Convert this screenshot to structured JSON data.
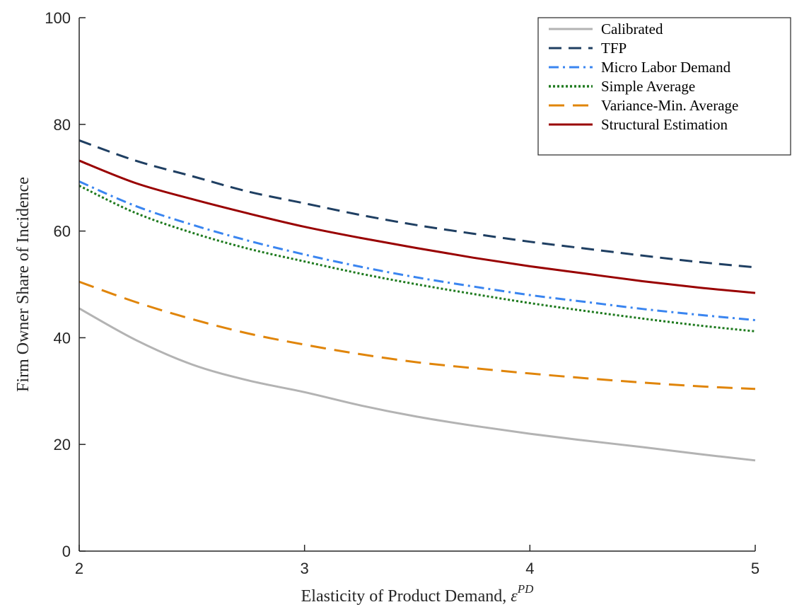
{
  "chart_data": {
    "type": "line",
    "title": "",
    "xlabel": "Elasticity of Product Demand, ",
    "xlabel_symbol": "ε",
    "xlabel_superscript": "PD",
    "ylabel": "Firm Owner Share of Incidence",
    "xlim": [
      2,
      5
    ],
    "ylim": [
      0,
      100
    ],
    "xticks": [
      2,
      3,
      4,
      5
    ],
    "yticks": [
      0,
      20,
      40,
      60,
      80,
      100
    ],
    "grid": false,
    "legend_position": "top-right",
    "x": [
      2.0,
      2.25,
      2.5,
      2.75,
      3.0,
      3.25,
      3.5,
      3.75,
      4.0,
      4.25,
      4.5,
      4.75,
      5.0
    ],
    "series": [
      {
        "name": "Calibrated",
        "color": "#b3b3b3",
        "dash": "solid",
        "values": [
          45.5,
          39.6,
          35.0,
          32.0,
          29.8,
          27.3,
          25.2,
          23.5,
          22.0,
          20.7,
          19.5,
          18.2,
          17.0
        ]
      },
      {
        "name": "TFP",
        "color": "#1f3f62",
        "dash": "dashed",
        "values": [
          77.0,
          73.2,
          70.3,
          67.4,
          65.2,
          63.0,
          61.1,
          59.5,
          58.0,
          56.7,
          55.4,
          54.2,
          53.2
        ]
      },
      {
        "name": "Micro Labor Demand",
        "color": "#3a85f0",
        "dash": "dashdot",
        "values": [
          69.3,
          64.7,
          61.2,
          58.2,
          55.6,
          53.3,
          51.3,
          49.6,
          48.0,
          46.7,
          45.4,
          44.3,
          43.3
        ]
      },
      {
        "name": "Simple Average",
        "color": "#1e7a1e",
        "dash": "dotted",
        "values": [
          68.5,
          63.4,
          59.7,
          56.7,
          54.3,
          52.0,
          50.0,
          48.2,
          46.5,
          45.0,
          43.6,
          42.3,
          41.2
        ]
      },
      {
        "name": "Variance-Min. Average",
        "color": "#e0850a",
        "dash": "longdash",
        "values": [
          50.5,
          46.7,
          43.5,
          40.8,
          38.7,
          36.9,
          35.4,
          34.3,
          33.3,
          32.4,
          31.6,
          30.9,
          30.4
        ]
      },
      {
        "name": "Structural Estimation",
        "color": "#990000",
        "dash": "solid",
        "values": [
          73.2,
          69.0,
          66.0,
          63.3,
          60.8,
          58.7,
          56.8,
          55.0,
          53.4,
          52.0,
          50.6,
          49.4,
          48.4
        ]
      }
    ]
  }
}
